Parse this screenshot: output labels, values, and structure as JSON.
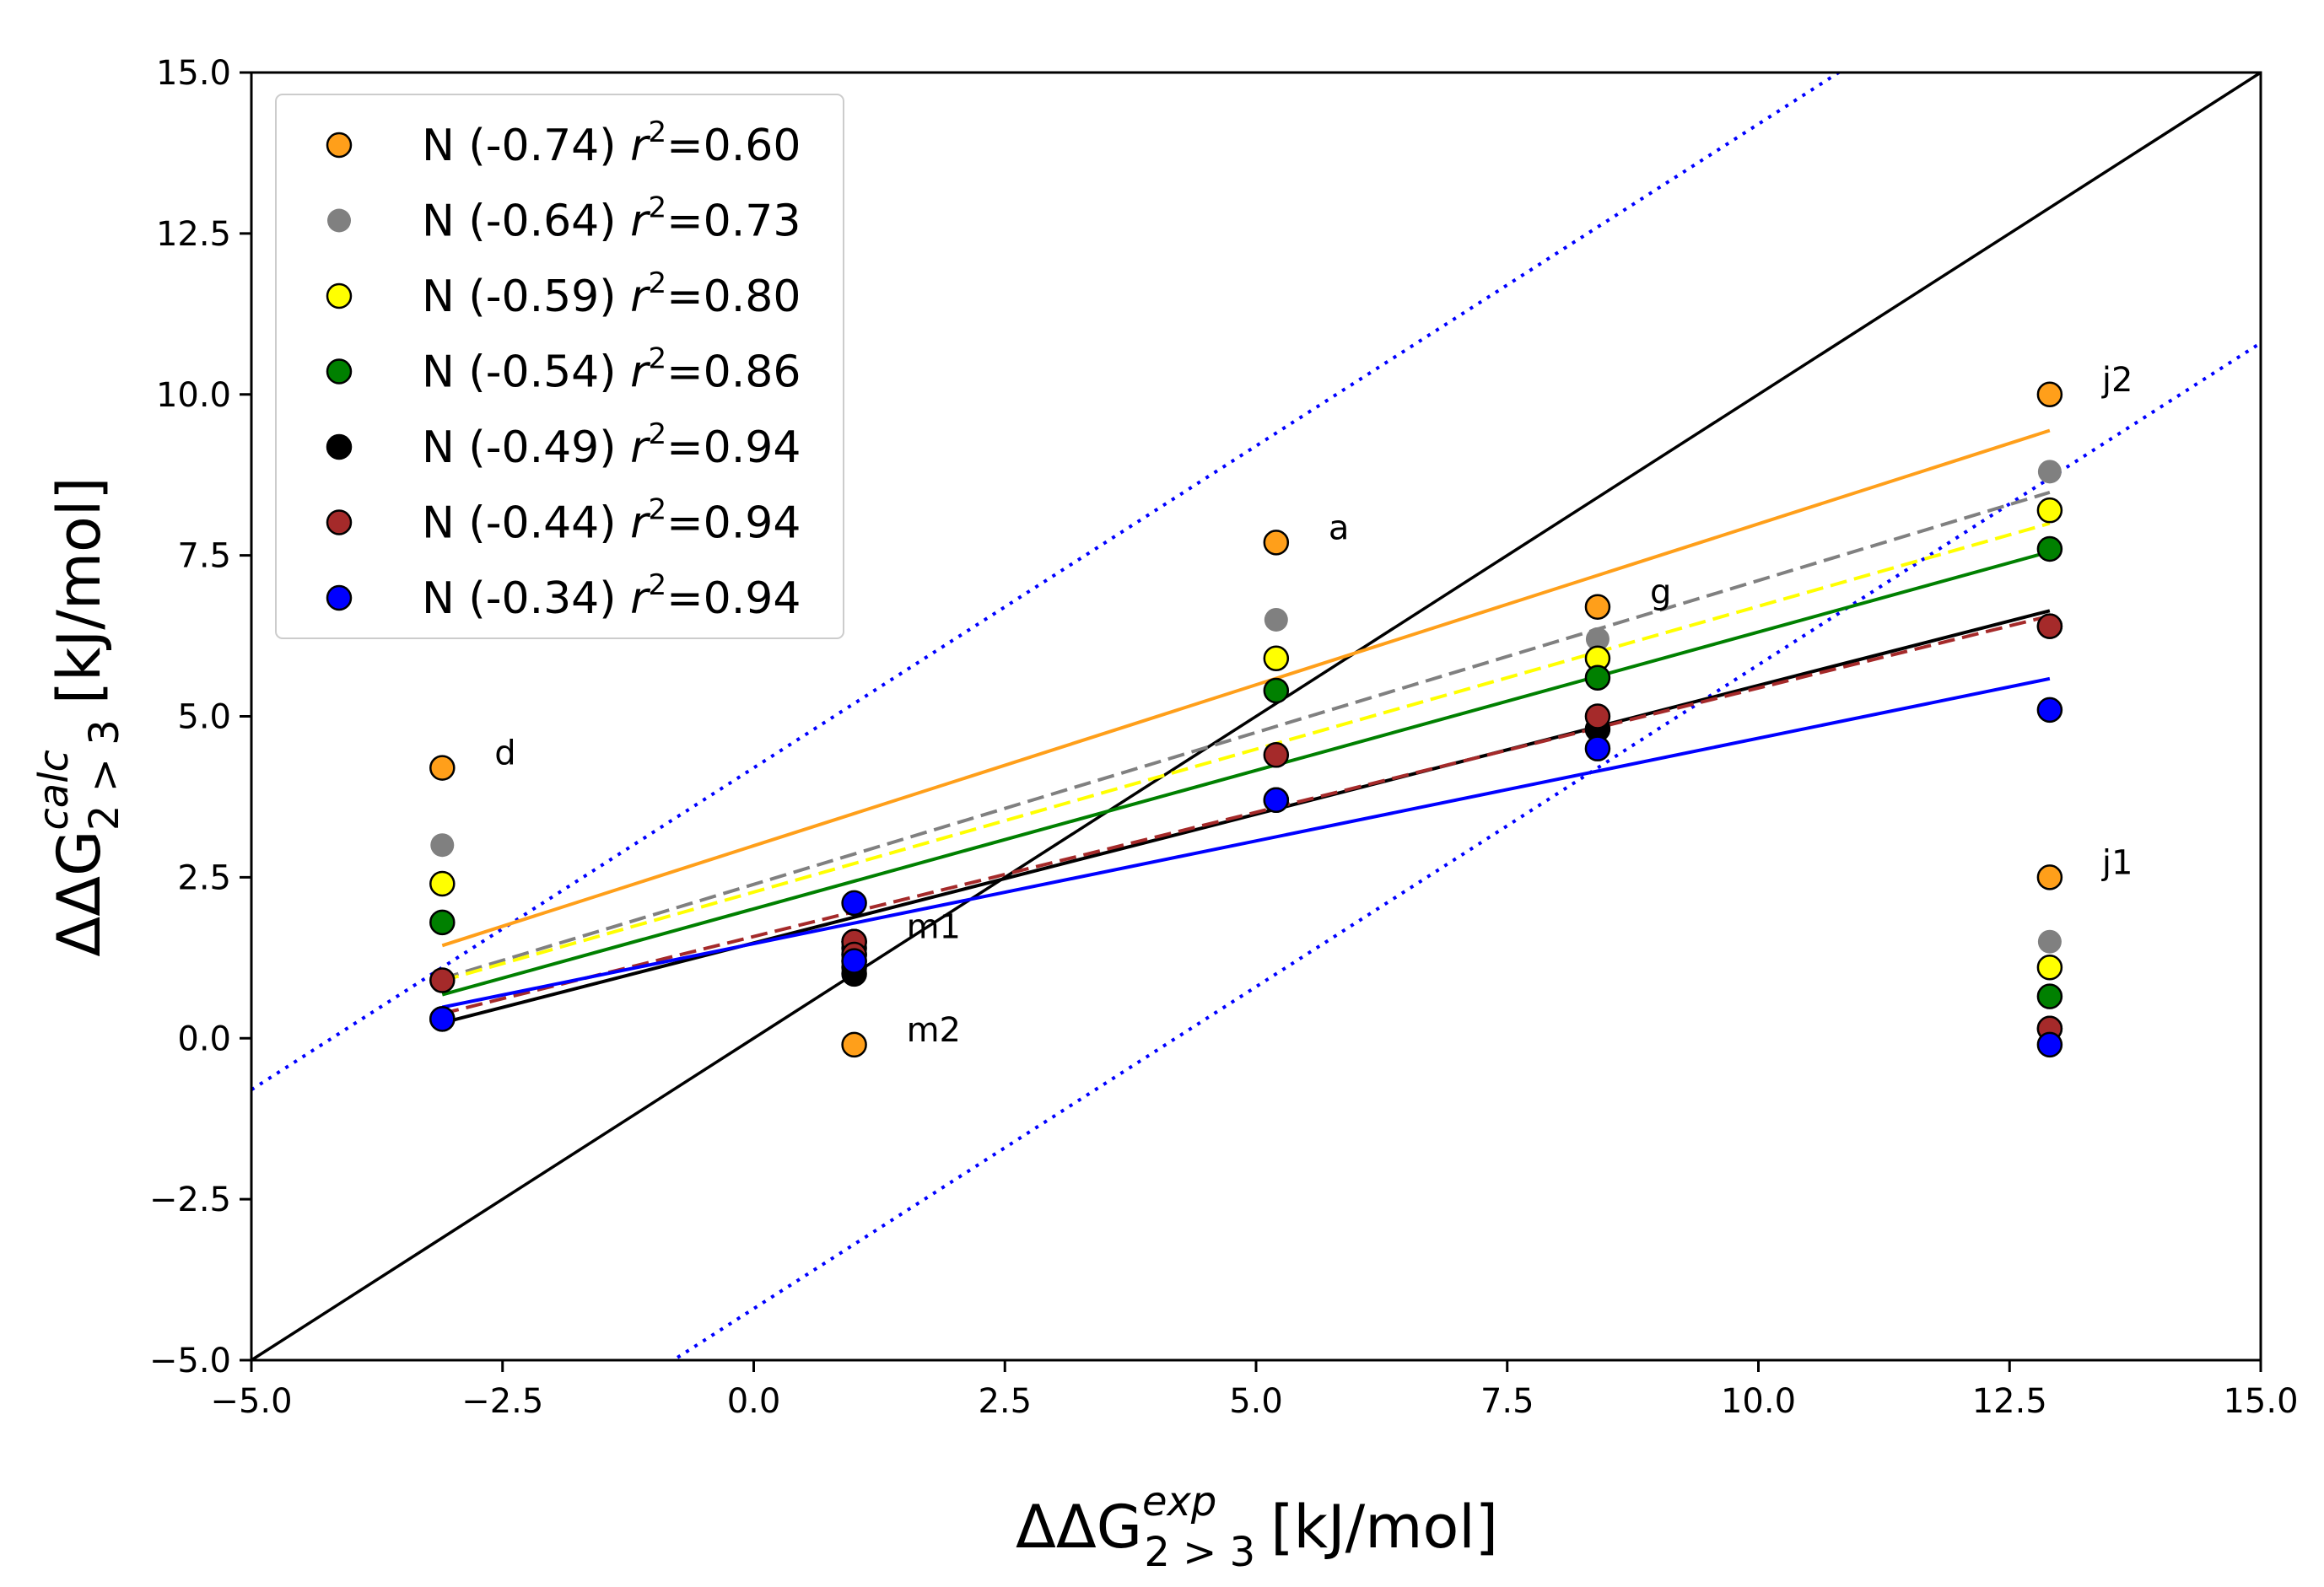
{
  "chart_data": {
    "type": "scatter",
    "title": "",
    "xlabel": {
      "prefix": "ΔΔG",
      "sup": "exp",
      "sub": "2 > 3",
      "unit": "[kJ/mol]"
    },
    "ylabel": {
      "prefix": "ΔΔG",
      "sup": "calc",
      "sub": "2 > 3",
      "unit": "[kJ/mol]"
    },
    "xlim": [
      -5.0,
      15.0
    ],
    "ylim": [
      -5.0,
      15.0
    ],
    "xticks": [
      -5.0,
      -2.5,
      0.0,
      2.5,
      5.0,
      7.5,
      10.0,
      12.5,
      15.0
    ],
    "xtick_labels": [
      "−5.0",
      "−2.5",
      "0.0",
      "2.5",
      "5.0",
      "7.5",
      "10.0",
      "12.5",
      "15.0"
    ],
    "yticks": [
      -5.0,
      -2.5,
      0.0,
      2.5,
      5.0,
      7.5,
      10.0,
      12.5,
      15.0
    ],
    "ytick_labels": [
      "−5.0",
      "−2.5",
      "0.0",
      "2.5",
      "5.0",
      "7.5",
      "10.0",
      "12.5",
      "15.0"
    ],
    "grid": false,
    "legend_position": "top-left",
    "x": [
      -3.1,
      1.0,
      1.0,
      5.2,
      8.4,
      12.9,
      12.9
    ],
    "point_labels": [
      {
        "text": "d",
        "x": -3.1,
        "y": 4.2
      },
      {
        "text": "m1",
        "x": 1.0,
        "y": 1.5
      },
      {
        "text": "m2",
        "x": 1.0,
        "y": -0.1
      },
      {
        "text": "a",
        "x": 5.2,
        "y": 7.7
      },
      {
        "text": "g",
        "x": 8.4,
        "y": 6.7
      },
      {
        "text": "j2",
        "x": 12.9,
        "y": 10.0
      },
      {
        "text": "j1",
        "x": 12.9,
        "y": 2.5
      }
    ],
    "series": [
      {
        "name": "N (-0.74)",
        "r2": "0.60",
        "color": "#ff9f1a",
        "edge": "#000000",
        "line_style": "solid",
        "values": [
          4.2,
          1.5,
          -0.1,
          7.7,
          6.7,
          10.0,
          2.5
        ],
        "fit": {
          "slope": 0.5,
          "intercept": 2.99
        }
      },
      {
        "name": "N (-0.64)",
        "r2": "0.73",
        "color": "#808080",
        "edge": "none",
        "line_style": "dashed",
        "values": [
          3.0,
          1.4,
          1.3,
          6.5,
          6.2,
          8.8,
          1.5
        ],
        "fit": {
          "slope": 0.472,
          "intercept": 2.39
        }
      },
      {
        "name": "N (-0.59)",
        "r2": "0.80",
        "color": "#ffff00",
        "edge": "#000000",
        "line_style": "dashed",
        "values": [
          2.4,
          1.3,
          1.2,
          5.9,
          5.9,
          8.2,
          1.1
        ],
        "fit": {
          "slope": 0.444,
          "intercept": 2.27
        }
      },
      {
        "name": "N (-0.54)",
        "r2": "0.86",
        "color": "#008000",
        "edge": "#000000",
        "line_style": "solid",
        "values": [
          1.8,
          1.5,
          1.4,
          5.4,
          5.6,
          7.6,
          0.65
        ],
        "fit": {
          "slope": 0.43,
          "intercept": 2.01
        }
      },
      {
        "name": "N (-0.49)",
        "r2": "0.94",
        "color": "#000000",
        "edge": "#000000",
        "line_style": "solid",
        "values": [
          0.3,
          1.0,
          1.1,
          3.7,
          4.8,
          6.4,
          0.15
        ],
        "fit": {
          "slope": 0.4,
          "intercept": 1.48
        }
      },
      {
        "name": "N (-0.44)",
        "r2": "0.94",
        "color": "#a52a2a",
        "edge": "#000000",
        "line_style": "dashed",
        "values": [
          0.9,
          1.5,
          1.3,
          4.4,
          5.0,
          6.4,
          0.15
        ],
        "fit": {
          "slope": 0.386,
          "intercept": 1.58
        }
      },
      {
        "name": "N (-0.34)",
        "r2": "0.94",
        "color": "#0000ff",
        "edge": "#000000",
        "line_style": "solid",
        "values": [
          0.3,
          2.1,
          1.2,
          3.7,
          4.5,
          5.1,
          -0.1
        ],
        "fit": {
          "slope": 0.319,
          "intercept": 1.47
        }
      }
    ],
    "reference_lines": [
      {
        "name": "identity y = x",
        "color": "#000000",
        "style": "solid",
        "slope": 1,
        "intercept": 0
      },
      {
        "name": "upper bound y = x + 4.2",
        "color": "#0000ff",
        "style": "dotted",
        "slope": 1,
        "intercept": 4.2
      },
      {
        "name": "lower bound y = x - 4.2",
        "color": "#0000ff",
        "style": "dotted",
        "slope": 1,
        "intercept": -4.2
      }
    ]
  }
}
